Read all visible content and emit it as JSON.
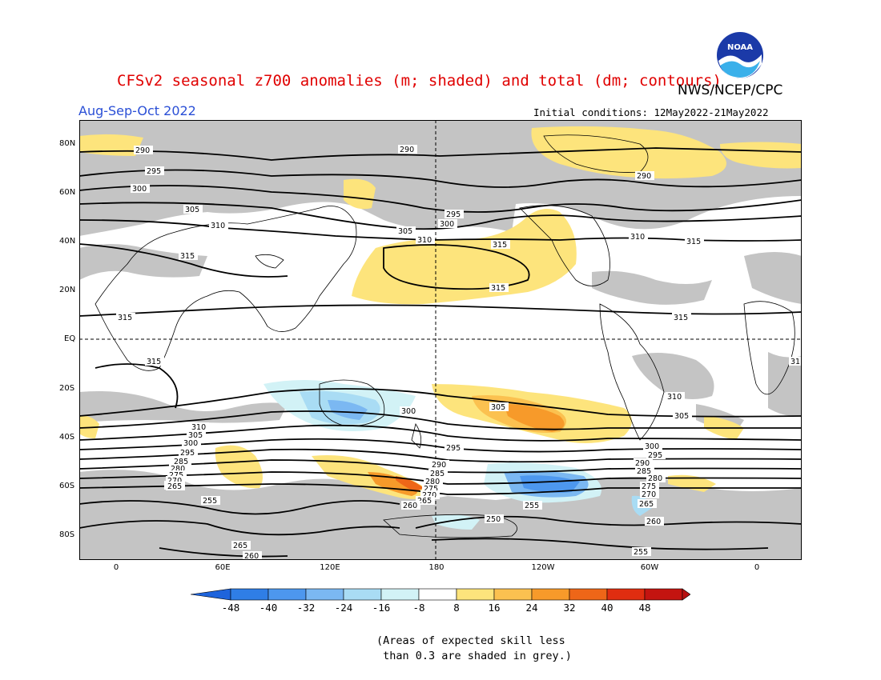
{
  "title": "CFSv2 seasonal z700 anomalies (m; shaded) and total (dm; contours)",
  "agency": "NWS/NCEP/CPC",
  "logo": {
    "icon": "noaa-logo-icon",
    "text": "NOAA"
  },
  "period": "Aug-Sep-Oct 2022",
  "initial_conditions": "Initial conditions: 12May2022-21May2022",
  "lat_labels": [
    "80N",
    "60N",
    "40N",
    "20N",
    "EQ",
    "20S",
    "40S",
    "60S",
    "80S"
  ],
  "lon_labels": [
    "0",
    "60E",
    "120E",
    "180",
    "120W",
    "60W",
    "0"
  ],
  "contour_labels": [
    "290",
    "290",
    "290",
    "295",
    "295",
    "300",
    "300",
    "305",
    "305",
    "310",
    "310",
    "310",
    "315",
    "315",
    "315",
    "315",
    "315",
    "315",
    "315",
    "31",
    "310",
    "310",
    "305",
    "305",
    "300",
    "300",
    "295",
    "295",
    "290",
    "290",
    "285",
    "285",
    "280",
    "280",
    "275",
    "275",
    "270",
    "270",
    "265",
    "265",
    "260",
    "260",
    "260",
    "255",
    "255",
    "255",
    "250",
    "265",
    "260",
    "300",
    "305",
    "295",
    "285",
    "280",
    "275",
    "270",
    "265"
  ],
  "colorbar": {
    "labels": [
      "-48",
      "-40",
      "-32",
      "-24",
      "-16",
      "-8",
      "8",
      "16",
      "24",
      "32",
      "40",
      "48"
    ],
    "colors": [
      "#1e64dc",
      "#2f7ee6",
      "#4d97ee",
      "#7bb8f2",
      "#a9dcf4",
      "#d2f2f6",
      "#ffffff",
      "#fde47c",
      "#fbc150",
      "#f79a2a",
      "#ee6618",
      "#e02d10",
      "#c41410"
    ],
    "under_color": "#1e64dc",
    "over_color": "#b81010"
  },
  "skill_shading_color": "#c4c4c4",
  "note_line1": "(Areas of expected skill less",
  "note_line2": " than 0.3 are shaded in grey.)"
}
